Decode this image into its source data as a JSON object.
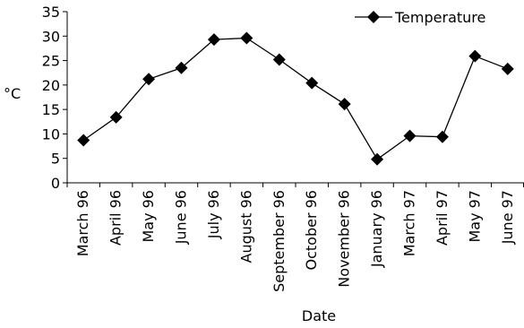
{
  "chart_data": {
    "type": "line",
    "title": "",
    "xlabel": "Date",
    "ylabel": "°C",
    "ylim": [
      0,
      35
    ],
    "yticks": [
      0,
      5,
      10,
      15,
      20,
      25,
      30,
      35
    ],
    "grid": false,
    "legend_position": "top-right",
    "categories": [
      "March 96",
      "April 96",
      "May 96",
      "June 96",
      "July 96",
      "August 96",
      "September 96",
      "October 96",
      "November 96",
      "January 96",
      "March 97",
      "April 97",
      "May 97",
      "June 97"
    ],
    "series": [
      {
        "name": "Temperature",
        "marker": "diamond",
        "color": "#000000",
        "values": [
          8.7,
          13.4,
          21.2,
          23.5,
          29.3,
          29.6,
          25.2,
          20.4,
          16.1,
          4.8,
          9.6,
          9.4,
          25.9,
          23.3
        ]
      }
    ]
  }
}
